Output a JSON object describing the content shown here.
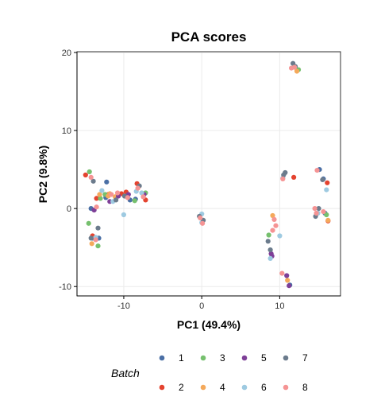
{
  "chart_data": {
    "type": "scatter",
    "title": "PCA scores",
    "xlabel": "PC1 (49.4%)",
    "ylabel": "PC2 (9.8%)",
    "xlim": [
      -16.0,
      17.8
    ],
    "ylim": [
      -11.2,
      20.1
    ],
    "x_ticks": [
      -10,
      0,
      10
    ],
    "x_tick_labels": [
      "-10",
      "0",
      "10"
    ],
    "y_ticks": [
      -10,
      0,
      10,
      20
    ],
    "y_tick_labels": [
      "-10",
      "0",
      "10",
      "20"
    ],
    "grid": true,
    "legend": {
      "title": "Batch",
      "position": "bottom",
      "labels": [
        "1",
        "2",
        "3",
        "4",
        "5",
        "6",
        "7",
        "8"
      ]
    },
    "series": [
      {
        "name": "1",
        "color": "#4a6fa5",
        "points": [
          [
            -12.2,
            3.4
          ],
          [
            -14.0,
            -3.8
          ],
          [
            -13.2,
            -3.8
          ],
          [
            -8.5,
            1.2
          ],
          [
            -14.2,
            0.0
          ],
          [
            -9.2,
            1.1
          ],
          [
            15.1,
            5.0
          ],
          [
            15.6,
            3.8
          ],
          [
            15.8,
            -0.6
          ],
          [
            11.3,
            -9.8
          ],
          [
            -12.3,
            1.4
          ]
        ]
      },
      {
        "name": "2",
        "color": "#e4432f",
        "points": [
          [
            -14.9,
            4.3
          ],
          [
            -12.0,
            1.8
          ],
          [
            -10.3,
            1.9
          ],
          [
            -9.7,
            2.1
          ],
          [
            -8.3,
            3.2
          ],
          [
            -7.2,
            1.1
          ],
          [
            -14.0,
            -3.5
          ],
          [
            11.8,
            4.0
          ],
          [
            16.1,
            3.3
          ],
          [
            16.2,
            -1.6
          ],
          [
            -13.5,
            1.3
          ],
          [
            -11.0,
            1.5
          ]
        ]
      },
      {
        "name": "3",
        "color": "#76c06e",
        "points": [
          [
            -14.4,
            4.7
          ],
          [
            -14.5,
            -1.9
          ],
          [
            -13.3,
            -4.8
          ],
          [
            -13.0,
            1.3
          ],
          [
            -12.4,
            1.8
          ],
          [
            12.4,
            17.8
          ],
          [
            8.6,
            -3.4
          ],
          [
            16.0,
            -0.8
          ],
          [
            -8.6,
            1.0
          ],
          [
            -7.2,
            2.0
          ]
        ]
      },
      {
        "name": "4",
        "color": "#f4a95b",
        "points": [
          [
            -14.1,
            -4.5
          ],
          [
            -13.1,
            1.8
          ],
          [
            -12.0,
            1.6
          ],
          [
            -11.1,
            1.5
          ],
          [
            -11.8,
            1.9
          ],
          [
            11.0,
            -9.2
          ],
          [
            9.1,
            -0.9
          ],
          [
            16.2,
            -1.5
          ],
          [
            12.2,
            17.6
          ]
        ]
      },
      {
        "name": "5",
        "color": "#7e3f97",
        "points": [
          [
            -13.8,
            -0.2
          ],
          [
            -11.8,
            0.9
          ],
          [
            -10.7,
            1.6
          ],
          [
            -9.4,
            1.8
          ],
          [
            -7.4,
            1.8
          ],
          [
            8.9,
            -5.8
          ],
          [
            11.2,
            -9.9
          ],
          [
            10.9,
            -8.6
          ],
          [
            9.0,
            -6.1
          ]
        ]
      },
      {
        "name": "6",
        "color": "#9ecae1",
        "points": [
          [
            -12.8,
            2.3
          ],
          [
            -13.6,
            -3.7
          ],
          [
            -11.4,
            0.9
          ],
          [
            -10.0,
            -0.8
          ],
          [
            -7.7,
            2.0
          ],
          [
            -8.4,
            2.2
          ],
          [
            0.0,
            -0.7
          ],
          [
            0.0,
            -1.8
          ],
          [
            10.0,
            -3.5
          ],
          [
            8.8,
            -6.4
          ],
          [
            14.9,
            -0.6
          ],
          [
            16.0,
            2.4
          ],
          [
            10.4,
            3.9
          ]
        ]
      },
      {
        "name": "7",
        "color": "#6b7b8c",
        "points": [
          [
            -13.9,
            3.5
          ],
          [
            -14.2,
            -3.8
          ],
          [
            -13.3,
            -2.5
          ],
          [
            -11.0,
            1.1
          ],
          [
            -9.9,
            1.6
          ],
          [
            -8.0,
            2.9
          ],
          [
            -0.3,
            -1.0
          ],
          [
            0.2,
            -1.5
          ],
          [
            11.7,
            18.6
          ],
          [
            12.0,
            18.2
          ],
          [
            10.7,
            4.6
          ],
          [
            10.5,
            4.3
          ],
          [
            8.5,
            -4.2
          ],
          [
            8.8,
            -5.3
          ],
          [
            15.0,
            0.0
          ],
          [
            14.6,
            -1.0
          ],
          [
            15.5,
            3.7
          ]
        ]
      },
      {
        "name": "8",
        "color": "#f59494",
        "points": [
          [
            -14.2,
            4.0
          ],
          [
            -13.5,
            0.2
          ],
          [
            -13.6,
            -4.0
          ],
          [
            -11.6,
            1.8
          ],
          [
            -10.8,
            2.0
          ],
          [
            -9.5,
            1.4
          ],
          [
            -7.5,
            1.5
          ],
          [
            -8.2,
            2.6
          ],
          [
            -0.2,
            -1.2
          ],
          [
            0.1,
            -1.9
          ],
          [
            11.5,
            18.0
          ],
          [
            11.9,
            18.1
          ],
          [
            10.4,
            3.8
          ],
          [
            9.3,
            -1.4
          ],
          [
            9.5,
            -2.2
          ],
          [
            9.1,
            -2.8
          ],
          [
            10.3,
            -8.3
          ],
          [
            14.8,
            4.9
          ],
          [
            14.5,
            0.0
          ],
          [
            15.6,
            -0.4
          ],
          [
            14.7,
            -0.6
          ]
        ]
      }
    ]
  }
}
